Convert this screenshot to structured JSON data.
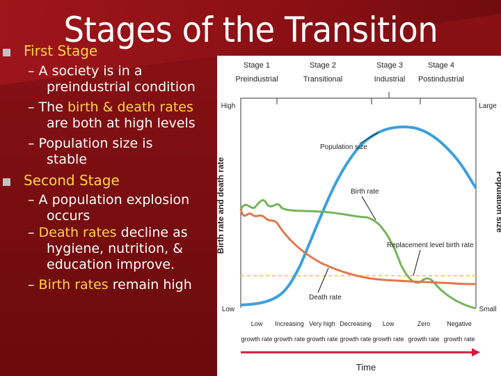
{
  "slide": {
    "title": "Stages of the Transition",
    "colors": {
      "background": "#7a0d10",
      "highlight": "#ffd54a",
      "text": "#ffffff",
      "bullet": "#c3c3c3"
    }
  },
  "bullets": [
    {
      "heading": "First Stage",
      "items": [
        {
          "parts": [
            {
              "t": "A society is in a",
              "hl": false
            }
          ],
          "line2": [
            {
              "t": "preindustrial condition",
              "hl": false
            }
          ]
        },
        {
          "parts": [
            {
              "t": "The ",
              "hl": false
            },
            {
              "t": "birth & death rates",
              "hl": true
            }
          ],
          "line2": [
            {
              "t": "are both at high levels",
              "hl": false
            }
          ]
        },
        {
          "parts": [
            {
              "t": "Population size is",
              "hl": false
            }
          ],
          "line2": [
            {
              "t": "stable",
              "hl": false
            }
          ]
        }
      ]
    },
    {
      "heading": "Second Stage",
      "items": [
        {
          "parts": [
            {
              "t": "A population explosion",
              "hl": false
            }
          ],
          "line2": [
            {
              "t": "occurs",
              "hl": false
            }
          ]
        },
        {
          "parts": [
            {
              "t": "Death rates",
              "hl": true
            },
            {
              "t": " decline as",
              "hl": false
            }
          ],
          "line2": [
            {
              "t": "hygiene, nutrition, &",
              "hl": false
            }
          ],
          "line3": [
            {
              "t": "education improve.",
              "hl": false
            }
          ]
        },
        {
          "parts": [
            {
              "t": "Birth rates",
              "hl": true
            },
            {
              "t": " remain high",
              "hl": false
            }
          ]
        }
      ]
    }
  ],
  "figure": {
    "stages": [
      {
        "line1": "Stage 1",
        "line2": "Preindustrial"
      },
      {
        "line1": "Stage 2",
        "line2": "Transitional"
      },
      {
        "line1": "Stage 3",
        "line2": "Industrial"
      },
      {
        "line1": "Stage 4",
        "line2": "Postindustrial"
      }
    ],
    "left_axis_label": "Birth rate and death rate",
    "right_axis_label": "Population size",
    "left_high": "High",
    "left_low": "Low",
    "right_large": "Large",
    "right_small": "Small",
    "curve_labels": {
      "population": "Population size",
      "birth": "Birth rate",
      "replacement": "Replacement level birth rate",
      "death": "Death rate"
    },
    "growth": [
      {
        "line1": "Low",
        "line2": "growth rate"
      },
      {
        "line1": "Increasing",
        "line2": "growth rate"
      },
      {
        "line1": "Very high",
        "line2": "growth rate"
      },
      {
        "line1": "Decreasing",
        "line2": "growth rate"
      },
      {
        "line1": "Low",
        "line2": "growth rate"
      },
      {
        "line1": "Zero",
        "line2": "growth rate"
      },
      {
        "line1": "Negative",
        "line2": "growth rate"
      }
    ],
    "x_axis_label": "Time",
    "colors": {
      "population": "#3aa0dc",
      "birth": "#76b35a",
      "death": "#e0774b",
      "replacement": "#f5d34a",
      "arrow": "#d8173c"
    }
  }
}
